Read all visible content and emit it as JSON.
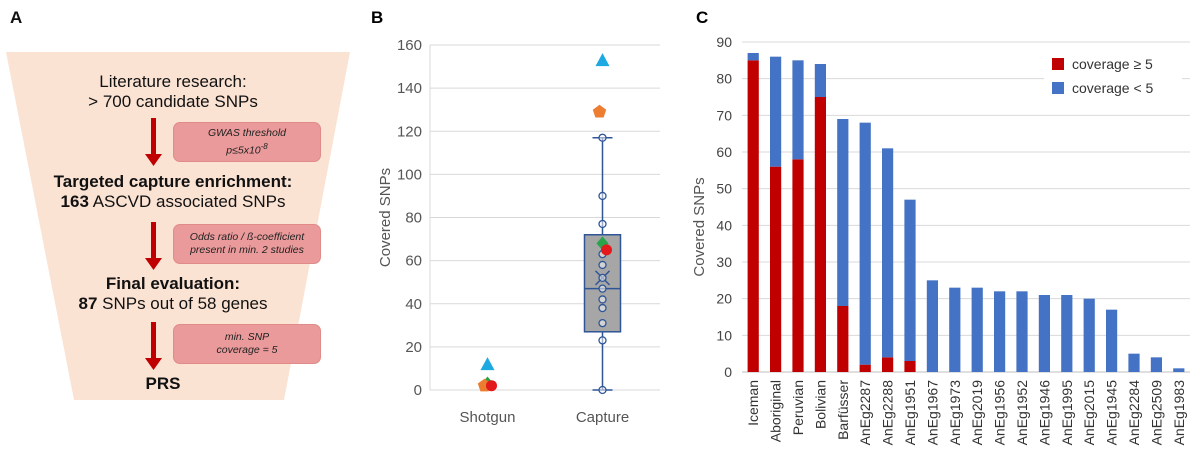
{
  "panel_labels": {
    "a": "A",
    "b": "B",
    "c": "C"
  },
  "flow": {
    "step1_line1": "Literature research:",
    "step1_line2": "> 700 candidate SNPs",
    "note1_line1": "GWAS threshold",
    "note1_line2_base": "p≤5x10",
    "note1_line2_exp": "-8",
    "step2_line1": "Targeted capture enrichment:",
    "step2_bold": "163",
    "step2_line2": " ASCVD associated SNPs",
    "note2_line1": "Odds ratio / ß-coefficient",
    "note2_line2": "present in min. 2 studies",
    "step3_line1": "Final evaluation:",
    "step3_bold": "87",
    "step3_line2": " SNPs out of 58 genes",
    "note3_line1": "min. SNP",
    "note3_line2": "coverage = 5",
    "step4": "PRS"
  },
  "chart_data": [
    {
      "type": "box",
      "panel": "B",
      "ylabel": "Covered SNPs",
      "ylim": [
        0,
        160
      ],
      "yticks": [
        0,
        20,
        40,
        60,
        80,
        100,
        120,
        140,
        160
      ],
      "categories": [
        "Shotgun",
        "Capture"
      ],
      "capture_box": {
        "min": 0,
        "q1": 27,
        "median": 47,
        "q3": 72,
        "max": 117,
        "mean": 52
      },
      "capture_points": [
        0,
        23,
        31,
        38,
        42,
        47,
        52,
        58,
        63,
        77,
        90,
        117
      ],
      "highlight_points": [
        {
          "group": "Shotgun",
          "value": 12,
          "shape": "triangle",
          "color": "#1fa9e1"
        },
        {
          "group": "Shotgun",
          "value": 3,
          "shape": "diamond",
          "color": "#2aa44b"
        },
        {
          "group": "Shotgun",
          "value": 2,
          "shape": "pentagon",
          "color": "#ed7d31"
        },
        {
          "group": "Shotgun",
          "value": 2,
          "shape": "circle",
          "color": "#e31a1c"
        },
        {
          "group": "Capture",
          "value": 153,
          "shape": "triangle",
          "color": "#1fa9e1"
        },
        {
          "group": "Capture",
          "value": 129,
          "shape": "pentagon",
          "color": "#ed7d31"
        },
        {
          "group": "Capture",
          "value": 68,
          "shape": "diamond",
          "color": "#2aa44b"
        },
        {
          "group": "Capture",
          "value": 65,
          "shape": "circle",
          "color": "#e31a1c"
        }
      ]
    },
    {
      "type": "bar",
      "panel": "C",
      "stacked": true,
      "ylabel": "Covered SNPs",
      "ylim": [
        0,
        90
      ],
      "yticks": [
        0,
        10,
        20,
        30,
        40,
        50,
        60,
        70,
        80,
        90
      ],
      "legend_position": "top-right",
      "categories": [
        "Iceman",
        "Aboriginal",
        "Peruvian",
        "Bolivian",
        "Barfüsser",
        "AnEg2287",
        "AnEg2288",
        "AnEg1951",
        "AnEg1967",
        "AnEg1973",
        "AnEg2019",
        "AnEg1956",
        "AnEg1952",
        "AnEg1946",
        "AnEg1995",
        "AnEg2015",
        "AnEg1945",
        "AnEg2284",
        "AnEg2509",
        "AnEg1983"
      ],
      "series": [
        {
          "name": "coverage ≥ 5",
          "color": "#c00000",
          "values": [
            85,
            56,
            58,
            75,
            18,
            2,
            4,
            3,
            0,
            0,
            0,
            0,
            0,
            0,
            0,
            0,
            0,
            0,
            0,
            0
          ]
        },
        {
          "name": "coverage < 5",
          "color": "#4472c4",
          "values": [
            2,
            30,
            27,
            9,
            51,
            66,
            57,
            44,
            25,
            23,
            23,
            22,
            22,
            21,
            21,
            20,
            17,
            5,
            4,
            1
          ]
        }
      ]
    }
  ]
}
